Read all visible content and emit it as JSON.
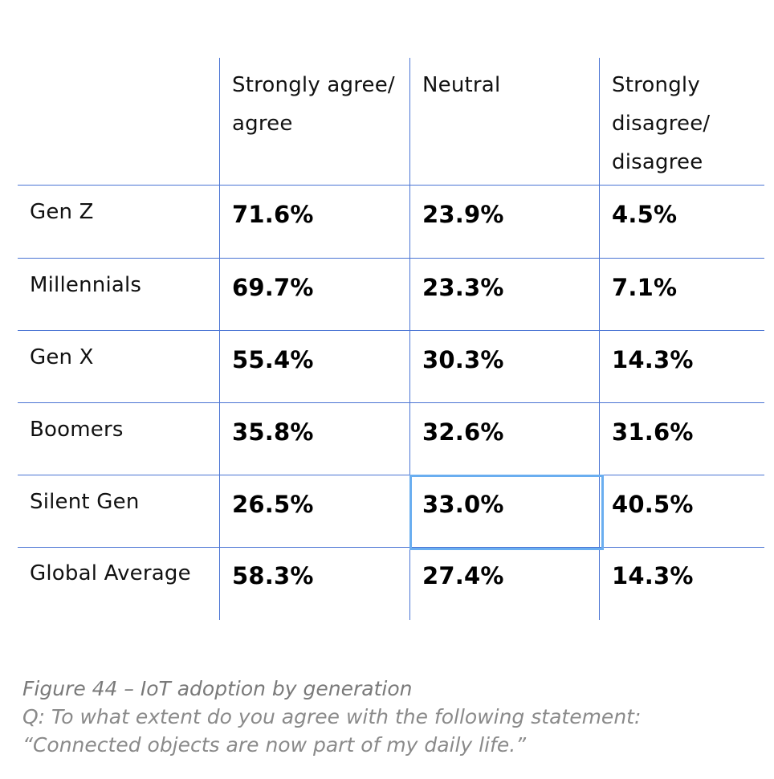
{
  "table": {
    "headers": [
      "",
      "Strongly agree/ agree",
      "Neutral",
      "Strongly disagree/ disagree"
    ],
    "header_lines": {
      "col1": [
        "Strongly agree/",
        "agree"
      ],
      "col2": [
        "Neutral"
      ],
      "col3": [
        "Strongly",
        "disagree/",
        "disagree"
      ]
    },
    "rows": [
      {
        "label": "Gen Z",
        "values": [
          "71.6%",
          "23.9%",
          "4.5%"
        ]
      },
      {
        "label": "Millennials",
        "values": [
          "69.7%",
          "23.3%",
          "7.1%"
        ]
      },
      {
        "label": "Gen X",
        "values": [
          "55.4%",
          "30.3%",
          "14.3%"
        ]
      },
      {
        "label": "Boomers",
        "values": [
          "35.8%",
          "32.6%",
          "31.6%"
        ]
      },
      {
        "label": "Silent Gen",
        "values": [
          "26.5%",
          "33.0%",
          "40.5%"
        ]
      },
      {
        "label": "Global Average",
        "values": [
          "58.3%",
          "27.4%",
          "14.3%"
        ]
      }
    ],
    "line_color": "#4a74d4",
    "highlight_color": "#6aaef0"
  },
  "caption": {
    "title": "Figure 44 – IoT adoption by generation",
    "question": "Q: To what extent do you agree with the following statement:",
    "statement": "“Connected objects are now part of my daily life.”"
  }
}
